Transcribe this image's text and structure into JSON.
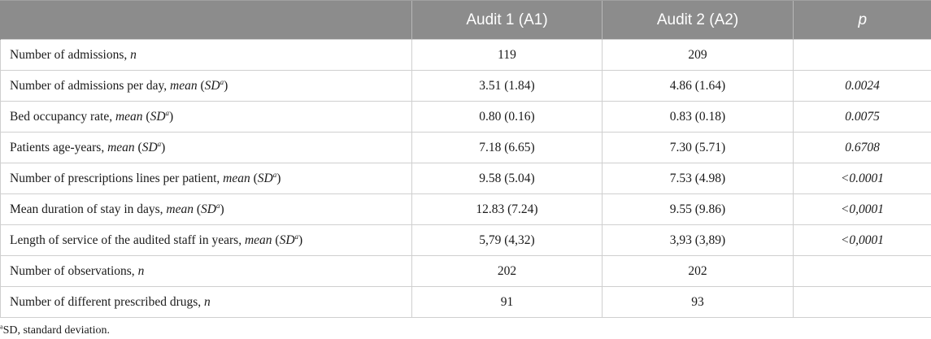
{
  "header": {
    "col0": "",
    "col1": "Audit 1 (A1)",
    "col2": "Audit 2 (A2)",
    "col3": "p"
  },
  "rows": [
    {
      "label": "Number of admissions, ",
      "stat": "n",
      "sd": false,
      "a1": "119",
      "a2": "209",
      "p": ""
    },
    {
      "label": "Number of admissions per day, ",
      "stat": "mean",
      "sd": true,
      "a1": "3.51 (1.84)",
      "a2": "4.86 (1.64)",
      "p": "0.0024"
    },
    {
      "label": "Bed occupancy rate, ",
      "stat": "mean",
      "sd": true,
      "a1": "0.80 (0.16)",
      "a2": "0.83 (0.18)",
      "p": "0.0075"
    },
    {
      "label": "Patients age-years, ",
      "stat": "mean",
      "sd": true,
      "a1": "7.18 (6.65)",
      "a2": "7.30 (5.71)",
      "p": "0.6708"
    },
    {
      "label": "Number of prescriptions lines per patient, ",
      "stat": "mean",
      "sd": true,
      "a1": "9.58 (5.04)",
      "a2": "7.53 (4.98)",
      "p": "<0.0001"
    },
    {
      "label": "Mean duration of stay in days, ",
      "stat": "mean",
      "sd": true,
      "a1": "12.83 (7.24)",
      "a2": "9.55 (9.86)",
      "p": "<0,0001"
    },
    {
      "label": "Length of service of the audited staff in years, ",
      "stat": "mean",
      "sd": true,
      "a1": "5,79 (4,32)",
      "a2": "3,93 (3,89)",
      "p": "<0,0001"
    },
    {
      "label": "Number of observations, ",
      "stat": "n",
      "sd": false,
      "a1": "202",
      "a2": "202",
      "p": ""
    },
    {
      "label": "Number of different prescribed drugs, ",
      "stat": "n",
      "sd": false,
      "a1": "91",
      "a2": "93",
      "p": ""
    }
  ],
  "sd_text": {
    "open": " (",
    "sd": "SD",
    "sup": "a",
    "close": ")"
  },
  "footnote": {
    "marker": "a",
    "text": "SD, standard deviation."
  }
}
